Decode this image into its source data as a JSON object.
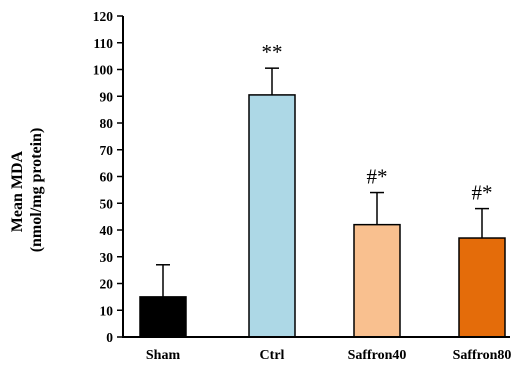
{
  "chart_data": {
    "type": "bar",
    "categories": [
      "Sham",
      "Ctrl",
      "Saffron40",
      "Saffron80"
    ],
    "values": [
      15,
      90.5,
      42,
      37
    ],
    "error_bars": [
      12,
      10,
      12,
      11
    ],
    "annotations": [
      "",
      "**",
      "#*",
      "#*"
    ],
    "colors": [
      "#000000",
      "#add8e6",
      "#f9c08f",
      "#e46c0a"
    ],
    "ylabel_lines": [
      "Mean MDA",
      "(nmol/mg protein)"
    ],
    "ylim": [
      0,
      120
    ],
    "yticks": [
      0,
      10,
      20,
      30,
      40,
      50,
      60,
      70,
      80,
      90,
      100,
      110,
      120
    ],
    "grid": false,
    "legend": false
  }
}
